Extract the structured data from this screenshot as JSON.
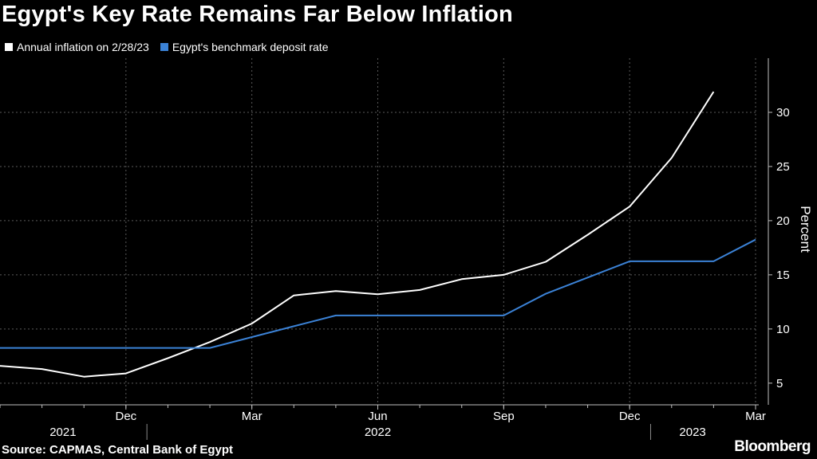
{
  "title": "Egypt's Key Rate Remains Far Below Inflation",
  "source": "Source: CAPMAS, Central Bank of Egypt",
  "brand": "Bloomberg",
  "chart_data": {
    "type": "line",
    "title": "Egypt's Key Rate Remains Far Below Inflation",
    "ylabel": "Percent",
    "xlabel": "",
    "ylim": [
      3,
      35
    ],
    "xlim": [
      0,
      18
    ],
    "y_ticks": [
      5,
      10,
      15,
      20,
      25,
      30
    ],
    "x_ticks": [
      {
        "pos": 3,
        "label": "Dec"
      },
      {
        "pos": 6,
        "label": "Mar"
      },
      {
        "pos": 9,
        "label": "Jun"
      },
      {
        "pos": 12,
        "label": "Sep"
      },
      {
        "pos": 15,
        "label": "Dec"
      },
      {
        "pos": 18,
        "label": "Mar"
      }
    ],
    "year_labels": [
      {
        "pos": 1.5,
        "label": "2021"
      },
      {
        "pos": 9,
        "label": "2022"
      },
      {
        "pos": 16.5,
        "label": "2023"
      }
    ],
    "year_dividers": [
      3.5,
      15.5
    ],
    "x_note": "x = months since Sep 2021",
    "grid": true,
    "legend_position": "top-left",
    "series": [
      {
        "name": "Annual inflation on 2/28/23",
        "color": "#ffffff",
        "x": [
          0,
          1,
          2,
          3,
          4,
          5,
          6,
          7,
          8,
          9,
          10,
          11,
          12,
          13,
          14,
          15,
          16,
          17
        ],
        "values": [
          6.6,
          6.3,
          5.6,
          5.9,
          7.3,
          8.8,
          10.5,
          13.1,
          13.5,
          13.2,
          13.6,
          14.6,
          15.0,
          16.2,
          18.7,
          21.3,
          25.8,
          31.9
        ]
      },
      {
        "name": "Egypt's benchmark deposit rate",
        "color": "#3b82d6",
        "x": [
          0,
          5,
          6,
          7,
          8,
          12,
          13,
          15,
          17,
          18
        ],
        "values": [
          8.25,
          8.25,
          9.25,
          10.25,
          11.25,
          11.25,
          13.25,
          16.25,
          16.25,
          18.25
        ]
      }
    ]
  }
}
